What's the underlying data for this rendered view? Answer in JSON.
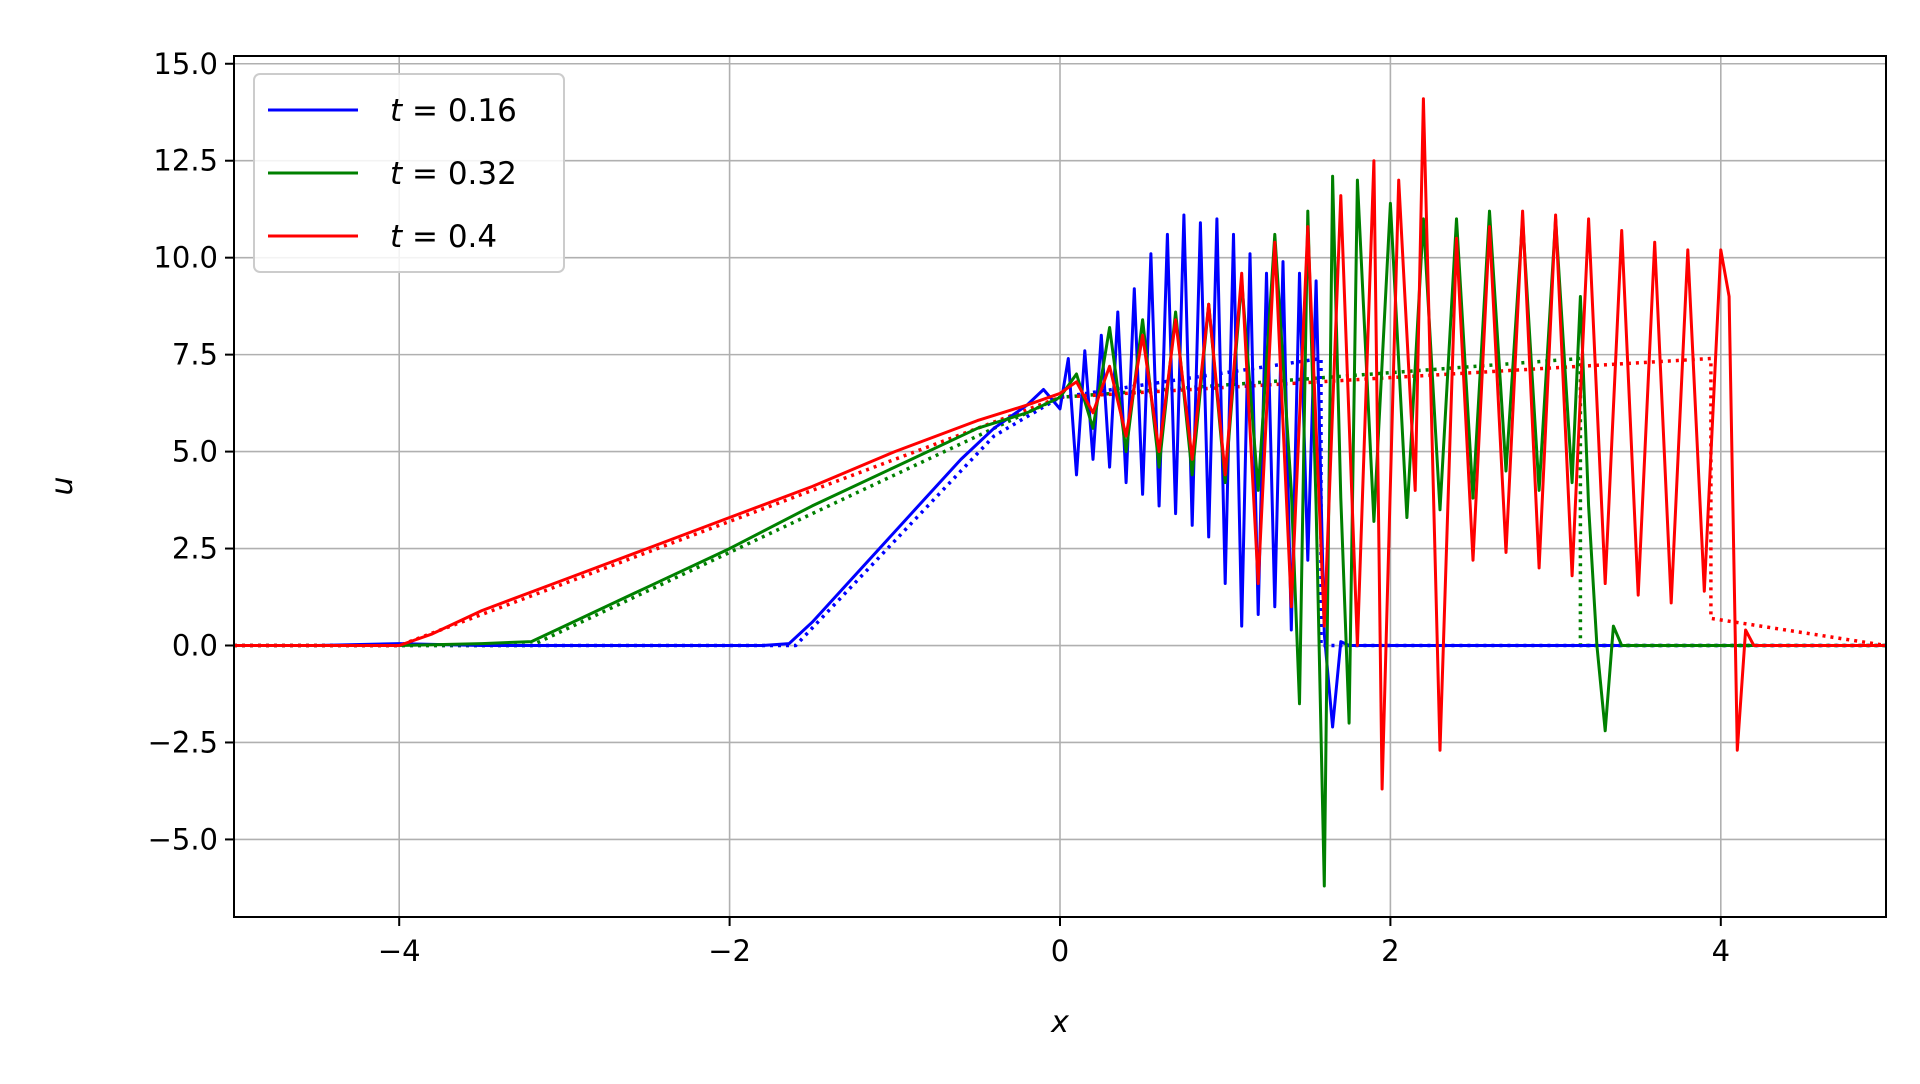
{
  "chart_data": {
    "type": "line",
    "title": "",
    "xlabel": "x",
    "ylabel": "u",
    "xlim": [
      -5,
      5
    ],
    "ylim": [
      -7.0,
      15.2
    ],
    "x_ticks": [
      -4,
      -2,
      0,
      2,
      4
    ],
    "x_tick_labels": [
      "−4",
      "−2",
      "0",
      "2",
      "4"
    ],
    "y_ticks": [
      -5.0,
      -2.5,
      0.0,
      2.5,
      5.0,
      7.5,
      10.0,
      12.5,
      15.0
    ],
    "y_tick_labels": [
      "−5.0",
      "−2.5",
      "0.0",
      "2.5",
      "5.0",
      "7.5",
      "10.0",
      "12.5",
      "15.0"
    ],
    "grid": true,
    "legend_position": "top-left",
    "series": [
      {
        "name": "t = 0.16",
        "legend_var": "t",
        "legend_val": "0.16",
        "color": "#0000ff",
        "style": "solid",
        "x": [
          -5.0,
          -4.5,
          -4.0,
          -3.5,
          -3.0,
          -2.5,
          -2.0,
          -1.8,
          -1.64,
          -1.5,
          -1.2,
          -0.9,
          -0.6,
          -0.4,
          -0.2,
          -0.1,
          0.0,
          0.05,
          0.1,
          0.15,
          0.2,
          0.25,
          0.3,
          0.35,
          0.4,
          0.45,
          0.5,
          0.55,
          0.6,
          0.65,
          0.7,
          0.75,
          0.8,
          0.85,
          0.9,
          0.95,
          1.0,
          1.05,
          1.1,
          1.15,
          1.2,
          1.25,
          1.3,
          1.35,
          1.4,
          1.45,
          1.5,
          1.55,
          1.6,
          1.65,
          1.7,
          1.75,
          2.0,
          3.0,
          4.0,
          5.0
        ],
        "y": [
          0.0,
          0.0,
          0.05,
          0.0,
          0.0,
          0.0,
          0.0,
          0.0,
          0.05,
          0.6,
          2.0,
          3.4,
          4.8,
          5.6,
          6.2,
          6.6,
          6.1,
          7.4,
          4.4,
          7.6,
          4.8,
          8.0,
          4.6,
          8.6,
          4.2,
          9.2,
          3.9,
          10.1,
          3.6,
          10.6,
          3.4,
          11.1,
          3.1,
          10.9,
          2.8,
          11.0,
          1.6,
          10.6,
          0.5,
          10.1,
          0.8,
          9.6,
          1.0,
          9.9,
          0.4,
          9.6,
          2.2,
          9.4,
          0.3,
          -2.1,
          0.1,
          0.0,
          0.0,
          0.0,
          0.0,
          0.0
        ]
      },
      {
        "name": "t = 0.32",
        "legend_var": "t",
        "legend_val": "0.32",
        "color": "#008000",
        "style": "solid",
        "x": [
          -5.0,
          -4.5,
          -4.0,
          -3.5,
          -3.2,
          -3.0,
          -2.5,
          -2.0,
          -1.5,
          -1.0,
          -0.5,
          -0.2,
          0.0,
          0.1,
          0.2,
          0.3,
          0.4,
          0.5,
          0.6,
          0.7,
          0.8,
          0.9,
          1.0,
          1.1,
          1.2,
          1.3,
          1.4,
          1.45,
          1.5,
          1.55,
          1.6,
          1.65,
          1.7,
          1.75,
          1.8,
          1.9,
          2.0,
          2.1,
          2.2,
          2.3,
          2.4,
          2.5,
          2.6,
          2.7,
          2.8,
          2.9,
          3.0,
          3.1,
          3.15,
          3.2,
          3.25,
          3.3,
          3.35,
          3.4,
          3.5,
          4.0,
          5.0
        ],
        "y": [
          0.0,
          0.0,
          0.0,
          0.05,
          0.1,
          0.5,
          1.5,
          2.5,
          3.6,
          4.6,
          5.6,
          6.0,
          6.4,
          7.0,
          5.6,
          8.2,
          5.0,
          8.4,
          4.6,
          8.6,
          4.4,
          8.8,
          4.2,
          9.4,
          4.0,
          10.6,
          4.0,
          -1.5,
          11.2,
          3.6,
          -6.2,
          12.1,
          3.8,
          -2.0,
          12.0,
          3.2,
          11.4,
          3.3,
          11.0,
          3.5,
          11.0,
          3.8,
          11.2,
          4.5,
          11.0,
          4.0,
          11.0,
          4.2,
          9.0,
          3.6,
          0.0,
          -2.2,
          0.5,
          0.0,
          0.0,
          0.0,
          0.0
        ]
      },
      {
        "name": "t = 0.4",
        "legend_var": "t",
        "legend_val": "0.4",
        "color": "#ff0000",
        "style": "solid",
        "x": [
          -5.0,
          -4.5,
          -4.0,
          -3.8,
          -3.5,
          -3.0,
          -2.5,
          -2.0,
          -1.5,
          -1.0,
          -0.5,
          -0.2,
          0.0,
          0.1,
          0.2,
          0.3,
          0.4,
          0.5,
          0.6,
          0.7,
          0.8,
          0.9,
          1.0,
          1.1,
          1.2,
          1.3,
          1.4,
          1.5,
          1.6,
          1.7,
          1.8,
          1.9,
          1.95,
          2.05,
          2.15,
          2.2,
          2.3,
          2.4,
          2.5,
          2.6,
          2.7,
          2.8,
          2.9,
          3.0,
          3.1,
          3.2,
          3.3,
          3.4,
          3.5,
          3.6,
          3.7,
          3.8,
          3.9,
          4.0,
          4.05,
          4.1,
          4.15,
          4.2,
          4.3,
          5.0
        ],
        "y": [
          0.0,
          0.0,
          0.0,
          0.3,
          0.9,
          1.7,
          2.5,
          3.3,
          4.1,
          5.0,
          5.8,
          6.2,
          6.5,
          6.8,
          6.0,
          7.2,
          5.4,
          8.0,
          5.0,
          8.4,
          4.8,
          8.8,
          4.4,
          9.6,
          1.6,
          10.4,
          1.0,
          10.8,
          0.5,
          11.6,
          0.0,
          12.5,
          -3.7,
          12.0,
          4.0,
          14.1,
          -2.7,
          10.5,
          2.2,
          10.8,
          2.4,
          11.2,
          2.0,
          11.1,
          1.8,
          11.0,
          1.6,
          10.7,
          1.3,
          10.4,
          1.1,
          10.2,
          1.4,
          10.2,
          9.0,
          -2.7,
          0.4,
          0.0,
          0.0,
          0.0
        ]
      },
      {
        "name": "",
        "color": "#0000ff",
        "style": "dotted",
        "x": [
          -5.0,
          -1.6,
          -0.4,
          0.0,
          1.58,
          1.58,
          5.0
        ],
        "y": [
          0.0,
          0.0,
          5.4,
          6.4,
          7.4,
          0.0,
          0.0
        ]
      },
      {
        "name": "",
        "color": "#008000",
        "style": "dotted",
        "x": [
          -5.0,
          -3.2,
          0.0,
          3.15,
          3.15,
          5.0
        ],
        "y": [
          0.0,
          0.0,
          6.4,
          7.4,
          0.0,
          0.0
        ]
      },
      {
        "name": "",
        "color": "#ff0000",
        "style": "dotted",
        "x": [
          -5.0,
          -4.0,
          0.0,
          3.94,
          3.94,
          5.0
        ],
        "y": [
          0.0,
          0.0,
          6.4,
          7.4,
          0.7,
          0.0
        ]
      }
    ]
  }
}
